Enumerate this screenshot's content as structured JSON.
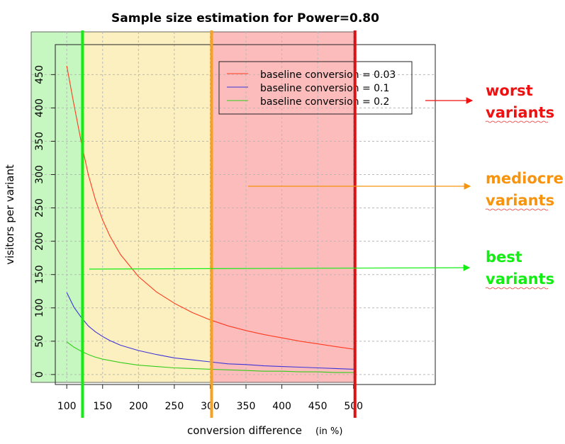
{
  "chart_data": {
    "type": "line",
    "title": "Sample size estimation for Power=0.80",
    "xlabel": "conversion difference",
    "xlabel_unit": "(in %)",
    "ylabel": "visitors per variant",
    "xlim": [
      84,
      614
    ],
    "ylim": [
      -15,
      495
    ],
    "x_ticks": [
      100,
      150,
      200,
      250,
      300,
      350,
      400,
      450,
      500
    ],
    "y_ticks": [
      0,
      50,
      100,
      150,
      200,
      250,
      300,
      350,
      400,
      450
    ],
    "grid": true,
    "legend_position": "top-right",
    "series": [
      {
        "name": "baseline conversion = 0.03",
        "color": "#ff3b1f",
        "x": [
          100,
          110,
          120,
          130,
          140,
          150,
          160,
          175,
          200,
          225,
          250,
          275,
          300,
          325,
          350,
          375,
          400,
          425,
          450,
          475,
          500
        ],
        "y": [
          463,
          405,
          350,
          300,
          262,
          232,
          208,
          180,
          147,
          124,
          107,
          93,
          82,
          73,
          66,
          60,
          55,
          50,
          46,
          42,
          38
        ]
      },
      {
        "name": "baseline conversion = 0.1",
        "color": "#3d35d8",
        "x": [
          100,
          110,
          120,
          130,
          140,
          150,
          160,
          175,
          200,
          225,
          250,
          275,
          300,
          325,
          350,
          375,
          400,
          425,
          450,
          475,
          500
        ],
        "y": [
          123,
          101,
          86,
          73,
          64,
          57,
          51,
          44,
          36,
          30,
          25,
          22,
          19,
          16,
          15,
          13,
          12,
          11,
          10,
          9,
          8
        ]
      },
      {
        "name": "baseline conversion = 0.2",
        "color": "#33cc1a",
        "x": [
          100,
          110,
          120,
          130,
          140,
          150,
          160,
          175,
          200,
          225,
          250,
          275,
          300,
          325,
          350,
          375,
          400,
          425,
          450,
          475,
          500
        ],
        "y": [
          49,
          41,
          35,
          30,
          26,
          23,
          21,
          18,
          14,
          12,
          10,
          9,
          8,
          7,
          6,
          5,
          5,
          4,
          4,
          3,
          3
        ]
      }
    ],
    "regions": [
      {
        "name": "best",
        "x_from": 84,
        "x_to": 123,
        "color": "#c6f7c0"
      },
      {
        "name": "mediocre",
        "x_from": 123,
        "x_to": 303,
        "color": "#fdf0c0"
      },
      {
        "name": "worst",
        "x_from": 303,
        "x_to": 502,
        "color": "#fcbcbc"
      }
    ],
    "markers": [
      {
        "x": 122,
        "color": "#11ee11"
      },
      {
        "x": 302,
        "color": "#f7a11c"
      },
      {
        "x": 502,
        "color": "#dd1111"
      }
    ]
  },
  "annotations": [
    {
      "name": "worst",
      "lines": [
        "worst",
        "variants"
      ],
      "color": "#ee1111",
      "y_at": 405
    },
    {
      "name": "mediocre",
      "lines": [
        "mediocre",
        "variants"
      ],
      "color": "#f7930c",
      "y_at": 274
    },
    {
      "name": "best",
      "lines": [
        "best",
        "variants"
      ],
      "color": "#11ee11",
      "y_at": 152
    }
  ]
}
